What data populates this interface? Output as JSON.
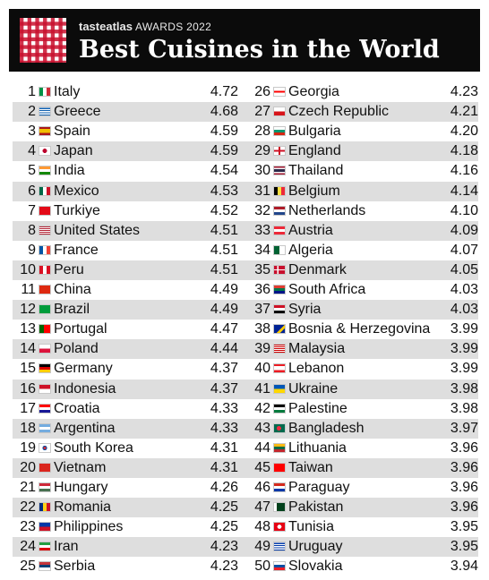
{
  "header": {
    "brand_name": "tasteatlas",
    "brand_tag": "AWARDS 2022",
    "title": "Best Cuisines in the World"
  },
  "left": [
    {
      "rank": "1",
      "country": "Italy",
      "score": "4.72",
      "flag": "f-it"
    },
    {
      "rank": "2",
      "country": "Greece",
      "score": "4.68",
      "flag": "f-gr"
    },
    {
      "rank": "3",
      "country": "Spain",
      "score": "4.59",
      "flag": "f-es"
    },
    {
      "rank": "4",
      "country": "Japan",
      "score": "4.59",
      "flag": "f-jp"
    },
    {
      "rank": "5",
      "country": "India",
      "score": "4.54",
      "flag": "f-in"
    },
    {
      "rank": "6",
      "country": "Mexico",
      "score": "4.53",
      "flag": "f-mx"
    },
    {
      "rank": "7",
      "country": "Turkiye",
      "score": "4.52",
      "flag": "f-tr"
    },
    {
      "rank": "8",
      "country": "United States",
      "score": "4.51",
      "flag": "f-us"
    },
    {
      "rank": "9",
      "country": "France",
      "score": "4.51",
      "flag": "f-fr"
    },
    {
      "rank": "10",
      "country": "Peru",
      "score": "4.51",
      "flag": "f-pe"
    },
    {
      "rank": "11",
      "country": "China",
      "score": "4.49",
      "flag": "f-cn"
    },
    {
      "rank": "12",
      "country": "Brazil",
      "score": "4.49",
      "flag": "f-br"
    },
    {
      "rank": "13",
      "country": "Portugal",
      "score": "4.47",
      "flag": "f-pt"
    },
    {
      "rank": "14",
      "country": "Poland",
      "score": "4.44",
      "flag": "f-pl"
    },
    {
      "rank": "15",
      "country": "Germany",
      "score": "4.37",
      "flag": "f-de"
    },
    {
      "rank": "16",
      "country": "Indonesia",
      "score": "4.37",
      "flag": "f-id"
    },
    {
      "rank": "17",
      "country": "Croatia",
      "score": "4.33",
      "flag": "f-hr"
    },
    {
      "rank": "18",
      "country": "Argentina",
      "score": "4.33",
      "flag": "f-ar"
    },
    {
      "rank": "19",
      "country": "South Korea",
      "score": "4.31",
      "flag": "f-kr"
    },
    {
      "rank": "20",
      "country": "Vietnam",
      "score": "4.31",
      "flag": "f-vn"
    },
    {
      "rank": "21",
      "country": "Hungary",
      "score": "4.26",
      "flag": "f-hu"
    },
    {
      "rank": "22",
      "country": "Romania",
      "score": "4.25",
      "flag": "f-ro"
    },
    {
      "rank": "23",
      "country": "Philippines",
      "score": "4.25",
      "flag": "f-ph"
    },
    {
      "rank": "24",
      "country": "Iran",
      "score": "4.23",
      "flag": "f-ir"
    },
    {
      "rank": "25",
      "country": "Serbia",
      "score": "4.23",
      "flag": "f-rs"
    }
  ],
  "right": [
    {
      "rank": "26",
      "country": "Georgia",
      "score": "4.23",
      "flag": "f-ge"
    },
    {
      "rank": "27",
      "country": "Czech Republic",
      "score": "4.21",
      "flag": "f-cz"
    },
    {
      "rank": "28",
      "country": "Bulgaria",
      "score": "4.20",
      "flag": "f-bg"
    },
    {
      "rank": "29",
      "country": "England",
      "score": "4.18",
      "flag": "f-en"
    },
    {
      "rank": "30",
      "country": "Thailand",
      "score": "4.16",
      "flag": "f-th"
    },
    {
      "rank": "31",
      "country": "Belgium",
      "score": "4.14",
      "flag": "f-be"
    },
    {
      "rank": "32",
      "country": "Netherlands",
      "score": "4.10",
      "flag": "f-nl"
    },
    {
      "rank": "33",
      "country": "Austria",
      "score": "4.09",
      "flag": "f-at"
    },
    {
      "rank": "34",
      "country": "Algeria",
      "score": "4.07",
      "flag": "f-dz"
    },
    {
      "rank": "35",
      "country": "Denmark",
      "score": "4.05",
      "flag": "f-dk"
    },
    {
      "rank": "36",
      "country": "South Africa",
      "score": "4.03",
      "flag": "f-za"
    },
    {
      "rank": "37",
      "country": "Syria",
      "score": "4.03",
      "flag": "f-sy"
    },
    {
      "rank": "38",
      "country": "Bosnia & Herzegovina",
      "score": "3.99",
      "flag": "f-ba"
    },
    {
      "rank": "39",
      "country": "Malaysia",
      "score": "3.99",
      "flag": "f-my"
    },
    {
      "rank": "40",
      "country": "Lebanon",
      "score": "3.99",
      "flag": "f-lb"
    },
    {
      "rank": "41",
      "country": "Ukraine",
      "score": "3.98",
      "flag": "f-ua"
    },
    {
      "rank": "42",
      "country": "Palestine",
      "score": "3.98",
      "flag": "f-ps"
    },
    {
      "rank": "43",
      "country": "Bangladesh",
      "score": "3.97",
      "flag": "f-bd"
    },
    {
      "rank": "44",
      "country": "Lithuania",
      "score": "3.96",
      "flag": "f-lt"
    },
    {
      "rank": "45",
      "country": "Taiwan",
      "score": "3.96",
      "flag": "f-tw"
    },
    {
      "rank": "46",
      "country": "Paraguay",
      "score": "3.96",
      "flag": "f-py"
    },
    {
      "rank": "47",
      "country": "Pakistan",
      "score": "3.96",
      "flag": "f-pk"
    },
    {
      "rank": "48",
      "country": "Tunisia",
      "score": "3.95",
      "flag": "f-tn"
    },
    {
      "rank": "49",
      "country": "Uruguay",
      "score": "3.95",
      "flag": "f-uy"
    },
    {
      "rank": "50",
      "country": "Slovakia",
      "score": "3.94",
      "flag": "f-sk"
    }
  ]
}
